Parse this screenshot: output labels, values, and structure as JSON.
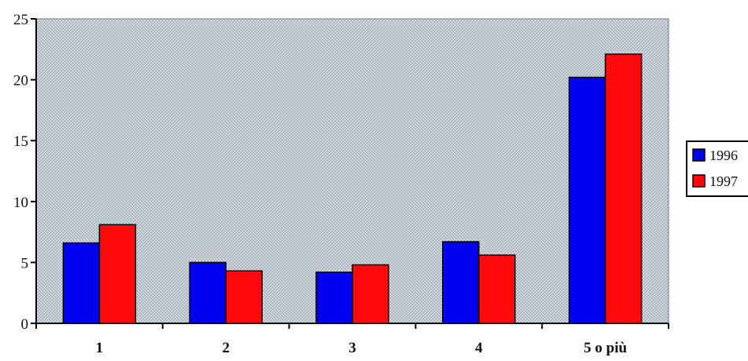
{
  "chart_data": {
    "type": "bar",
    "title": "",
    "xlabel": "",
    "ylabel": "",
    "categories": [
      "1",
      "2",
      "3",
      "4",
      "5 o più"
    ],
    "series": [
      {
        "name": "1996",
        "values": [
          6.6,
          5.0,
          4.2,
          6.7,
          20.2
        ]
      },
      {
        "name": "1997",
        "values": [
          8.1,
          4.3,
          4.8,
          5.6,
          22.1
        ]
      }
    ],
    "ylim": [
      0,
      25
    ],
    "yticks": [
      0,
      5,
      10,
      15,
      20,
      25
    ],
    "grid": false,
    "legend_position": "right",
    "colors": {
      "1996": "#0000ee",
      "1997": "#ff0a0a",
      "plot_background": "#b9c2cb"
    }
  }
}
